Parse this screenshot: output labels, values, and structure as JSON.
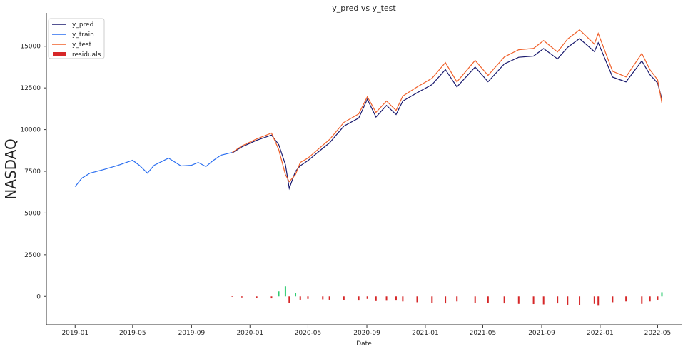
{
  "chart_data": {
    "type": "line",
    "title": "y_pred vs y_test",
    "xlabel": "Date",
    "ylabel": "NASDAQ",
    "xlim": [
      "2018-11-02",
      "2022-06-20"
    ],
    "ylim": [
      -1700,
      17000
    ],
    "grid": false,
    "legend_position": "top-left",
    "x_ticks": [
      "2019-01",
      "2019-05",
      "2019-09",
      "2020-01",
      "2020-05",
      "2020-09",
      "2021-01",
      "2021-05",
      "2021-09",
      "2022-01",
      "2022-05"
    ],
    "y_ticks": [
      0,
      2500,
      5000,
      7500,
      10000,
      12500,
      15000
    ],
    "colors": {
      "y_pred": "#1a1a6e",
      "y_train": "#2a6ef0",
      "y_test": "#f0602a",
      "residual_neg": "#d62728",
      "residual_pos": "#2ecc71"
    },
    "legend": [
      "y_pred",
      "y_train",
      "y_test",
      "residuals"
    ],
    "y_train": {
      "x": [
        "2019-01-01",
        "2019-01-15",
        "2019-02-01",
        "2019-03-01",
        "2019-04-01",
        "2019-05-01",
        "2019-05-15",
        "2019-06-01",
        "2019-06-15",
        "2019-07-15",
        "2019-08-10",
        "2019-09-01",
        "2019-09-15",
        "2019-10-01",
        "2019-10-15",
        "2019-11-01",
        "2019-11-25"
      ],
      "y": [
        6580,
        7090,
        7390,
        7600,
        7860,
        8160,
        7860,
        7390,
        7860,
        8290,
        7820,
        7860,
        8030,
        7780,
        8120,
        8460,
        8630
      ]
    },
    "y_test": {
      "x": [
        "2019-11-25",
        "2019-12-15",
        "2020-01-15",
        "2020-02-15",
        "2020-03-01",
        "2020-03-15",
        "2020-03-23",
        "2020-04-05",
        "2020-04-15",
        "2020-05-01",
        "2020-06-01",
        "2020-06-15",
        "2020-07-15",
        "2020-08-15",
        "2020-09-02",
        "2020-09-20",
        "2020-10-12",
        "2020-11-01",
        "2020-11-15",
        "2020-12-15",
        "2021-01-15",
        "2021-02-12",
        "2021-03-08",
        "2021-04-15",
        "2021-05-12",
        "2021-06-15",
        "2021-07-15",
        "2021-08-15",
        "2021-09-05",
        "2021-10-04",
        "2021-10-25",
        "2021-11-19",
        "2021-12-20",
        "2021-12-28",
        "2022-01-27",
        "2022-02-24",
        "2022-03-29",
        "2022-04-15",
        "2022-05-01",
        "2022-05-10"
      ],
      "y": [
        8630,
        9020,
        9440,
        9790,
        8800,
        7300,
        6880,
        7300,
        8030,
        8290,
        9060,
        9400,
        10430,
        10940,
        11970,
        11030,
        11710,
        11150,
        12010,
        12560,
        13080,
        14020,
        12860,
        14150,
        13250,
        14360,
        14790,
        14870,
        15340,
        14660,
        15430,
        15980,
        15130,
        15770,
        13500,
        13160,
        14570,
        13590,
        12990,
        11580
      ]
    },
    "residuals": [
      -30,
      -60,
      -80,
      -120,
      300,
      600,
      -400,
      200,
      -200,
      -150,
      -180,
      -200,
      -220,
      -250,
      -150,
      -280,
      -260,
      -250,
      -300,
      -350,
      -380,
      -420,
      -300,
      -400,
      -380,
      -420,
      -450,
      -460,
      -480,
      -420,
      -500,
      -520,
      -450,
      -560,
      -350,
      -300,
      -450,
      -300,
      -200,
      250
    ]
  }
}
